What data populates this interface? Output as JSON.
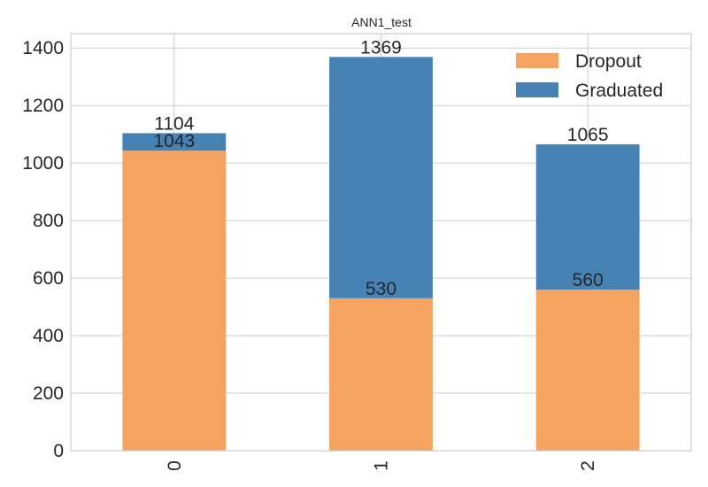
{
  "chart_data": {
    "type": "bar",
    "stacked": true,
    "title": "ANN1_test",
    "xlabel": "",
    "ylabel": "",
    "categories": [
      "0",
      "1",
      "2"
    ],
    "series": [
      {
        "name": "Dropout",
        "color": "#f4a460",
        "values": [
          1043,
          530,
          560
        ]
      },
      {
        "name": "Graduated",
        "color": "#4682b4",
        "values": [
          61,
          839,
          505
        ]
      }
    ],
    "totals": [
      1104,
      1369,
      1065
    ],
    "ylim": [
      0,
      1450
    ],
    "yticks": [
      0,
      200,
      400,
      600,
      800,
      1000,
      1200,
      1400
    ],
    "grid": true,
    "legend_position": "top-right"
  }
}
